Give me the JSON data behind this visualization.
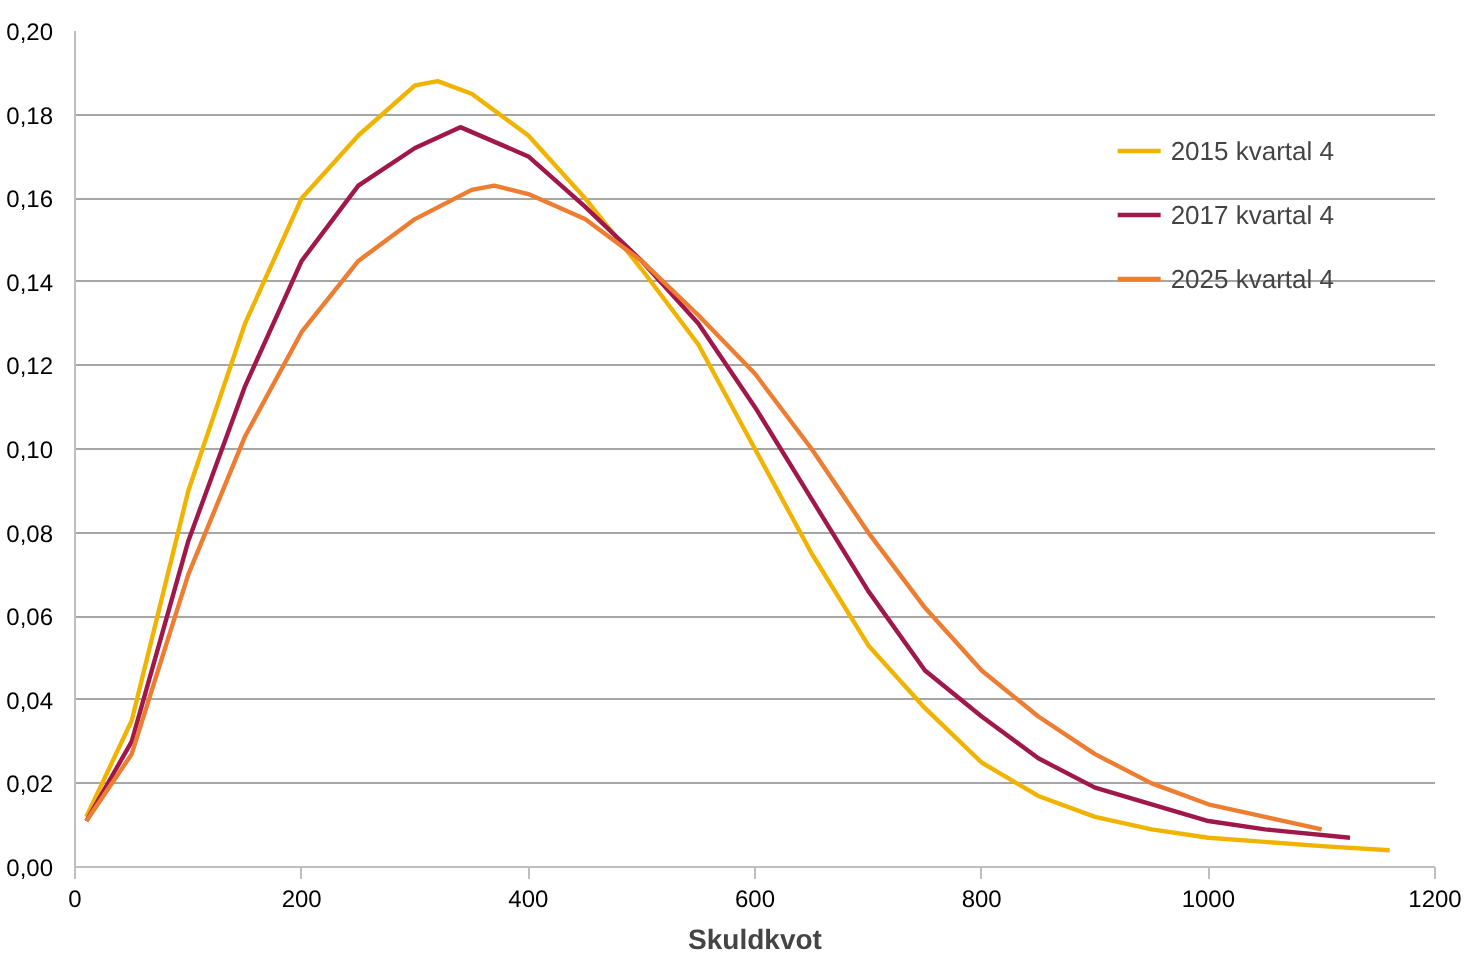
{
  "chart_data": {
    "type": "line",
    "xlabel": "Skuldkvot",
    "xlim": [
      0,
      1200
    ],
    "xticks": [
      0,
      200,
      400,
      600,
      800,
      1000,
      1200
    ],
    "ylim": [
      0,
      0.2
    ],
    "yticks": [
      {
        "value": 0,
        "label": "0,00"
      },
      {
        "value": 0.02,
        "label": "0,02"
      },
      {
        "value": 0.04,
        "label": "0,04"
      },
      {
        "value": 0.06,
        "label": "0,06"
      },
      {
        "value": 0.08,
        "label": "0,08"
      },
      {
        "value": 0.1,
        "label": "0,10"
      },
      {
        "value": 0.12,
        "label": "0,12"
      },
      {
        "value": 0.14,
        "label": "0,14"
      },
      {
        "value": 0.16,
        "label": "0,16"
      },
      {
        "value": 0.18,
        "label": "0,18"
      },
      {
        "value": 0.2,
        "label": "0,20"
      }
    ],
    "grid": "y",
    "legend": "top right",
    "marker": "none",
    "line_style": "solid",
    "series": [
      {
        "name": "2015 kvartal 4",
        "color": "#f0b400",
        "x": [
          10,
          50,
          100,
          150,
          200,
          250,
          300,
          320,
          350,
          400,
          450,
          500,
          550,
          600,
          650,
          700,
          750,
          800,
          850,
          900,
          950,
          1000,
          1050,
          1100,
          1160
        ],
        "values": [
          0.012,
          0.035,
          0.09,
          0.13,
          0.16,
          0.175,
          0.187,
          0.188,
          0.185,
          0.175,
          0.16,
          0.143,
          0.125,
          0.1,
          0.075,
          0.053,
          0.038,
          0.025,
          0.017,
          0.012,
          0.009,
          0.007,
          0.006,
          0.005,
          0.004
        ]
      },
      {
        "name": "2017 kvartal 4",
        "color": "#a0174a",
        "x": [
          10,
          50,
          100,
          150,
          200,
          250,
          300,
          340,
          400,
          450,
          500,
          550,
          600,
          650,
          700,
          750,
          800,
          850,
          900,
          950,
          1000,
          1050,
          1125
        ],
        "values": [
          0.011,
          0.03,
          0.078,
          0.115,
          0.145,
          0.163,
          0.172,
          0.177,
          0.17,
          0.158,
          0.145,
          0.13,
          0.11,
          0.088,
          0.066,
          0.047,
          0.036,
          0.026,
          0.019,
          0.015,
          0.011,
          0.009,
          0.007
        ]
      },
      {
        "name": "2025 kvartal 4",
        "color": "#ed7d31",
        "x": [
          10,
          50,
          100,
          150,
          200,
          250,
          300,
          350,
          370,
          400,
          450,
          500,
          550,
          600,
          650,
          700,
          750,
          800,
          850,
          900,
          950,
          1000,
          1050,
          1100
        ],
        "values": [
          0.011,
          0.027,
          0.07,
          0.103,
          0.128,
          0.145,
          0.155,
          0.162,
          0.163,
          0.161,
          0.155,
          0.145,
          0.132,
          0.118,
          0.1,
          0.08,
          0.062,
          0.047,
          0.036,
          0.027,
          0.02,
          0.015,
          0.012,
          0.009
        ]
      }
    ]
  }
}
